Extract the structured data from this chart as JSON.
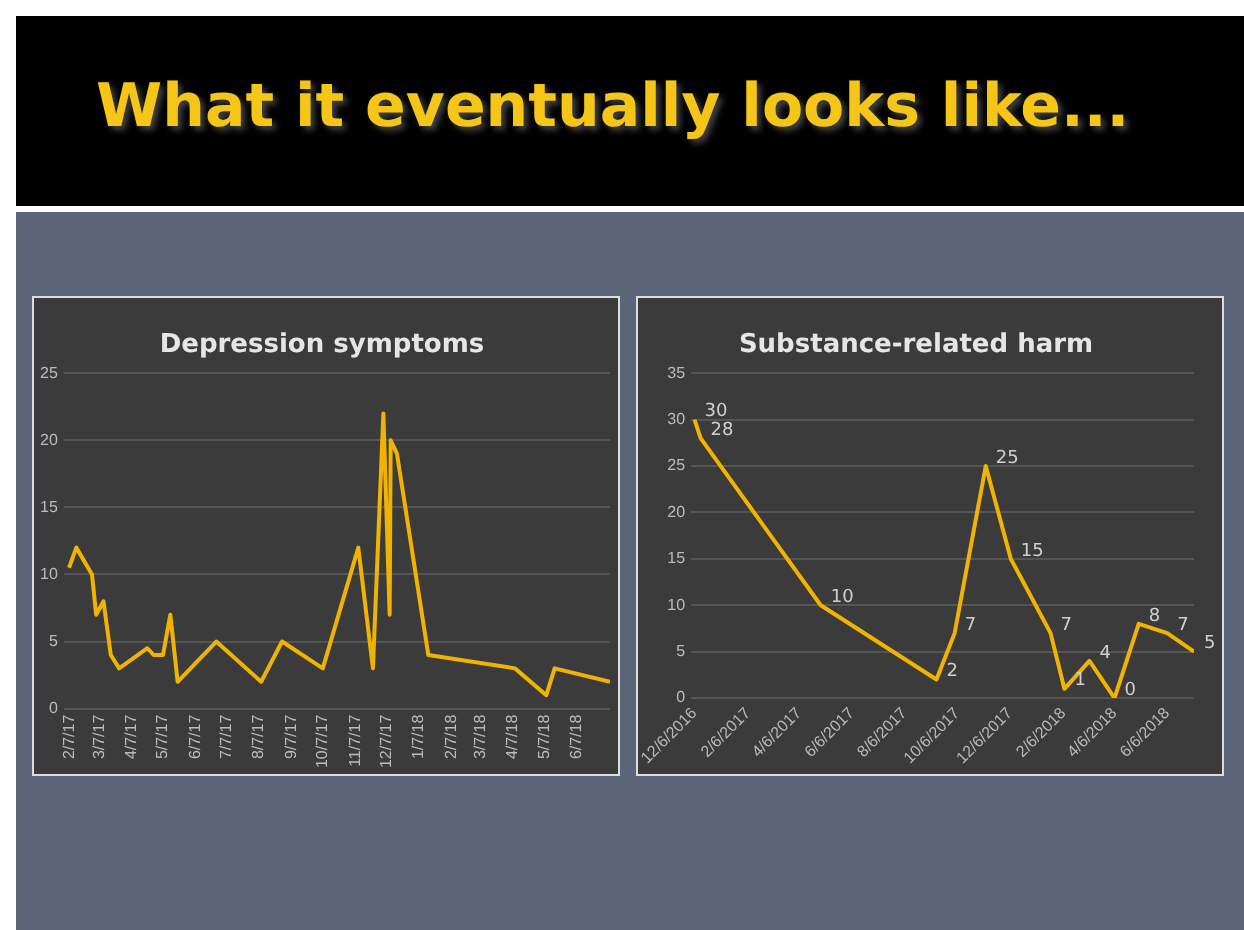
{
  "chart_data": [
    {
      "type": "other",
      "title": "What it eventually looks like..."
    },
    {
      "type": "line",
      "title": "Depression symptoms",
      "color": "#f0b400",
      "grid": "y",
      "legend": false,
      "marker": "none",
      "x": [
        "2017-02-06",
        "2017-02-13",
        "2017-02-28",
        "2017-03-04",
        "2017-03-11",
        "2017-03-18",
        "2017-03-26",
        "2017-04-22",
        "2017-04-28",
        "2017-05-07",
        "2017-05-14",
        "2017-05-21",
        "2017-06-27",
        "2017-08-09",
        "2017-08-29",
        "2017-10-07",
        "2017-11-10",
        "2017-11-24",
        "2017-12-04",
        "2017-12-10",
        "2017-12-11",
        "2017-12-17",
        "2018-01-16",
        "2018-04-09",
        "2018-05-09",
        "2018-05-17",
        "2018-07-09"
      ],
      "values": [
        10.5,
        12,
        10,
        7,
        8,
        4,
        3,
        4.5,
        4,
        4,
        7,
        2,
        5,
        2,
        5,
        3,
        12,
        3,
        22,
        7,
        20,
        19,
        4,
        3,
        1,
        3,
        2
      ],
      "xlim": [
        "2017-02-01",
        "2018-07-09"
      ],
      "xticks": [
        {
          "value": "2017-02-07",
          "label": "2/7/17"
        },
        {
          "value": "2017-03-07",
          "label": "3/7/17"
        },
        {
          "value": "2017-04-07",
          "label": "4/7/17"
        },
        {
          "value": "2017-05-07",
          "label": "5/7/17"
        },
        {
          "value": "2017-06-07",
          "label": "6/7/17"
        },
        {
          "value": "2017-07-07",
          "label": "7/7/17"
        },
        {
          "value": "2017-08-07",
          "label": "8/7/17"
        },
        {
          "value": "2017-09-07",
          "label": "9/7/17"
        },
        {
          "value": "2017-10-07",
          "label": "10/7/17"
        },
        {
          "value": "2017-11-07",
          "label": "11/7/17"
        },
        {
          "value": "2017-12-07",
          "label": "12/7/17"
        },
        {
          "value": "2018-01-07",
          "label": "1/7/18"
        },
        {
          "value": "2018-02-07",
          "label": "2/7/18"
        },
        {
          "value": "2018-03-07",
          "label": "3/7/18"
        },
        {
          "value": "2018-04-07",
          "label": "4/7/18"
        },
        {
          "value": "2018-05-07",
          "label": "5/7/18"
        },
        {
          "value": "2018-06-07",
          "label": "6/7/18"
        }
      ],
      "ylim": [
        0,
        25
      ],
      "yticks": [
        0,
        5,
        10,
        15,
        20,
        25
      ]
    },
    {
      "type": "line",
      "title": "Substance-related harm",
      "color": "#f0b400",
      "grid": "y",
      "legend": false,
      "marker": "none",
      "data_labels": true,
      "x": [
        "2016-12-06",
        "2016-12-13",
        "2017-05-01",
        "2017-09-12",
        "2017-10-03",
        "2017-11-08",
        "2017-12-07",
        "2018-01-22",
        "2018-02-07",
        "2018-03-08",
        "2018-04-06",
        "2018-05-04",
        "2018-06-06",
        "2018-07-07"
      ],
      "values": [
        30,
        28,
        10,
        2,
        7,
        25,
        15,
        7,
        1,
        4,
        0,
        8,
        7,
        5
      ],
      "xlim": [
        "2016-12-02",
        "2018-07-07"
      ],
      "xticks": [
        {
          "value": "2016-12-06",
          "label": "12/6/2016"
        },
        {
          "value": "2017-02-06",
          "label": "2/6/2017"
        },
        {
          "value": "2017-04-06",
          "label": "4/6/2017"
        },
        {
          "value": "2017-06-06",
          "label": "6/6/2017"
        },
        {
          "value": "2017-08-06",
          "label": "8/6/2017"
        },
        {
          "value": "2017-10-06",
          "label": "10/6/2017"
        },
        {
          "value": "2017-12-06",
          "label": "12/6/2017"
        },
        {
          "value": "2018-02-06",
          "label": "2/6/2018"
        },
        {
          "value": "2018-04-06",
          "label": "4/6/2018"
        },
        {
          "value": "2018-06-06",
          "label": "6/6/2018"
        }
      ],
      "ylim": [
        0,
        35
      ],
      "yticks": [
        0,
        5,
        10,
        15,
        20,
        25,
        30,
        35
      ]
    }
  ]
}
